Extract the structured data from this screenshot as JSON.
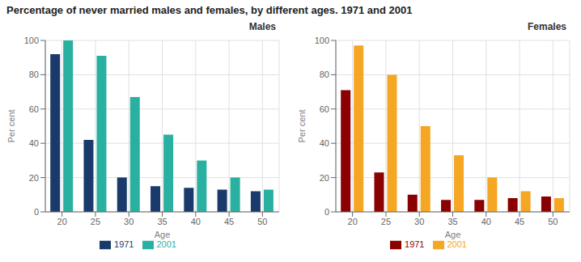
{
  "title": "Percentage of never married males and females, by different ages. 1971 and 2001",
  "chart_data": [
    {
      "type": "bar",
      "title": "Males",
      "categories": [
        "20",
        "25",
        "30",
        "35",
        "40",
        "45",
        "50"
      ],
      "xlabel": "Age",
      "ylabel": "Per cent",
      "ylim": [
        0,
        100
      ],
      "yticks": [
        0,
        20,
        40,
        60,
        80,
        100
      ],
      "grid": true,
      "legend": "bottom",
      "series": [
        {
          "name": "1971",
          "color": "#1a3a6b",
          "values": [
            92,
            42,
            20,
            15,
            14,
            13,
            12
          ]
        },
        {
          "name": "2001",
          "color": "#2ab0a0",
          "values": [
            100,
            91,
            67,
            45,
            30,
            20,
            13
          ]
        }
      ]
    },
    {
      "type": "bar",
      "title": "Females",
      "categories": [
        "20",
        "25",
        "30",
        "35",
        "40",
        "45",
        "50"
      ],
      "xlabel": "Age",
      "ylabel": "Per cent",
      "ylim": [
        0,
        100
      ],
      "yticks": [
        0,
        20,
        40,
        60,
        80,
        100
      ],
      "grid": true,
      "legend": "bottom",
      "series": [
        {
          "name": "1971",
          "color": "#8b0000",
          "values": [
            71,
            23,
            10,
            7,
            7,
            8,
            9
          ]
        },
        {
          "name": "2001",
          "color": "#f5a623",
          "values": [
            97,
            80,
            50,
            33,
            20,
            12,
            8
          ]
        }
      ]
    }
  ]
}
